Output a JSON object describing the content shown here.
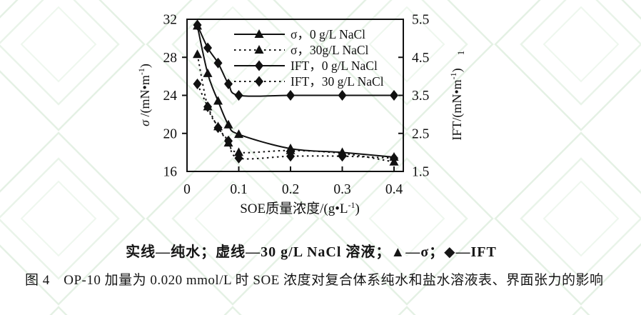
{
  "page": {
    "background_color": "#ffffff",
    "watermark_color": "#e4f1e4",
    "ink_color": "#111111"
  },
  "chart_data": {
    "type": "line",
    "x": [
      0.02,
      0.04,
      0.06,
      0.08,
      0.1,
      0.2,
      0.3,
      0.4
    ],
    "series": [
      {
        "name": "σ，0 g/L NaCl",
        "axis": "left",
        "line": "solid",
        "marker": "triangle",
        "values": [
          31.3,
          26.3,
          23.4,
          20.9,
          19.9,
          18.4,
          18.0,
          17.5
        ]
      },
      {
        "name": "σ，30g/L NaCl",
        "axis": "left",
        "line": "dotted",
        "marker": "triangle",
        "values": [
          28.3,
          22.8,
          20.7,
          19.0,
          18.0,
          18.2,
          17.9,
          17.0
        ]
      },
      {
        "name": "IFT，0 g/L NaCl",
        "axis": "right",
        "line": "solid",
        "marker": "diamond",
        "values": [
          5.35,
          4.75,
          4.35,
          3.8,
          3.5,
          3.5,
          3.5,
          3.5
        ]
      },
      {
        "name": "IFT，30 g/L NaCl",
        "axis": "right",
        "line": "dotted",
        "marker": "diamond",
        "values": [
          3.8,
          3.2,
          2.65,
          2.3,
          1.85,
          1.9,
          1.9,
          1.85
        ]
      }
    ],
    "legend": {
      "position": "top-right-inside",
      "entries": [
        "σ，0 g/L NaCl",
        "σ，30g/L NaCl",
        "IFT，0 g/L NaCl",
        "IFT，30 g/L NaCl"
      ]
    },
    "left_axis": {
      "label_parts": [
        {
          "t": "σ",
          "italic": true
        },
        {
          "t": " /(mN•m"
        },
        {
          "t": "-1",
          "sup": true
        },
        {
          "t": ")"
        }
      ],
      "ticks": [
        "32",
        "28",
        "24",
        "20",
        "16"
      ],
      "range": [
        16,
        32
      ],
      "grid": false
    },
    "right_axis": {
      "label_parts": [
        {
          "t": "IFT/(mN•m"
        },
        {
          "t": "-1",
          "sup": true
        },
        {
          "t": ")"
        }
      ],
      "stray_exponent": "1",
      "ticks": [
        "5.5",
        "4.5",
        "3.5",
        "2.5",
        "1.5"
      ],
      "range": [
        1.5,
        5.5
      ],
      "grid": false
    },
    "x_axis": {
      "label_parts": [
        {
          "t": "SOE质量浓度/(g•L"
        },
        {
          "t": "-1",
          "sup": true
        },
        {
          "t": ")"
        }
      ],
      "ticks": [
        "0",
        "0.1",
        "0.2",
        "0.3",
        "0.4"
      ],
      "range": [
        0,
        0.4
      ],
      "grid": false
    }
  },
  "captions": {
    "legend_note": "实线—纯水；虚线—30 g/L NaCl 溶液；▲—σ；◆—IFT",
    "figure_caption": "图 4　OP-10 加量为 0.020 mmol/L 时 SOE 浓度对复合体系纯水和盐水溶液表、界面张力的影响"
  }
}
